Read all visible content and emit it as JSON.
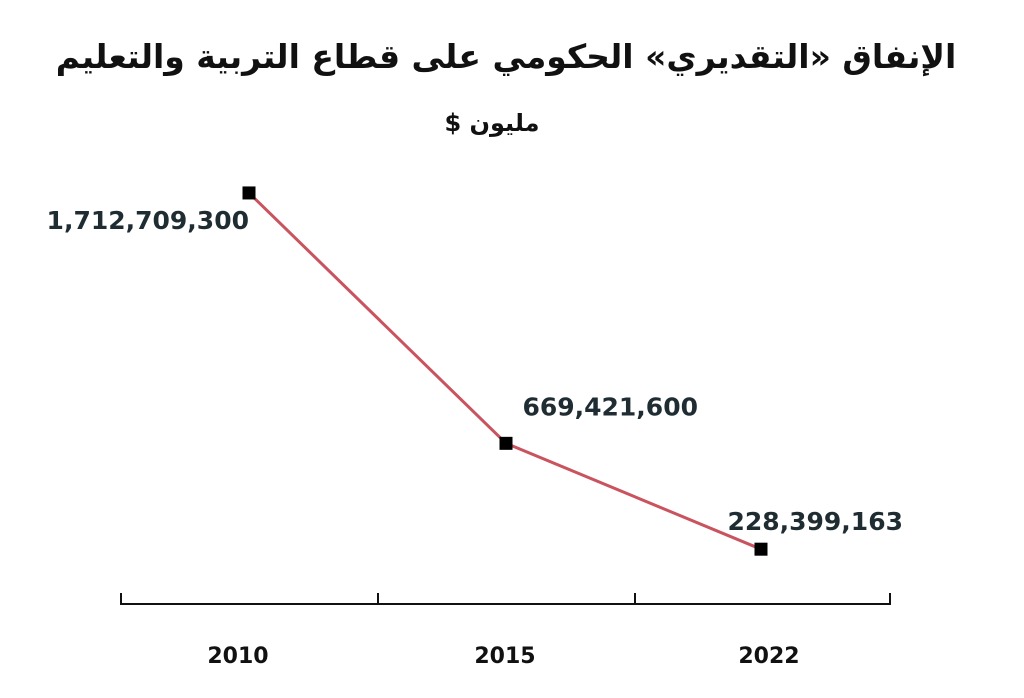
{
  "chart_data": {
    "type": "line",
    "title": "الإنفاق «التقديري» الحكومي على قطاع التربية والتعليم",
    "subtitle": "مليون $",
    "categories": [
      "2010",
      "2015",
      "2022"
    ],
    "values": [
      1712709300,
      669421600,
      228399163
    ],
    "value_labels": [
      "1,712,709,300",
      "669,421,600",
      "228,399,163"
    ],
    "ylim": [
      0,
      1800000000
    ],
    "grid": false,
    "legend": "none",
    "line_color": "#c9535e",
    "marker_color": "#000000",
    "axis_color": "#111111"
  }
}
